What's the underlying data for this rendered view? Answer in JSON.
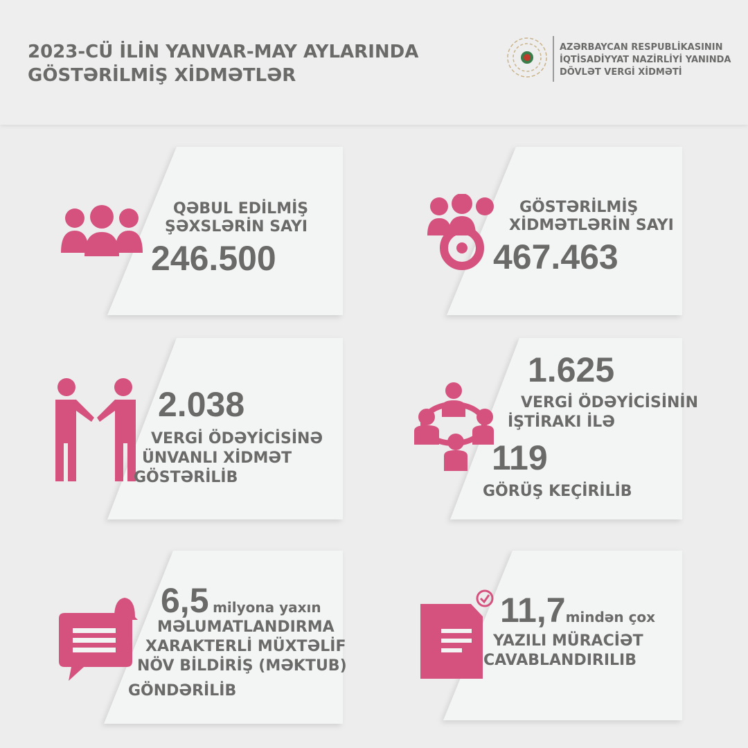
{
  "header": {
    "title_line1": "2023-CÜ İLİN YANVAR-MAY AYLARINDA",
    "title_line2": "GÖSTƏRİLMİŞ XİDMƏTLƏR",
    "org_line1": "AZƏRBAYCAN RESPUBLİKASININ",
    "org_line2": "İQTİSADİYYAT NAZİRLİYİ YANINDA",
    "org_line3": "DÖVLƏT VERGİ XİDMƏTİ"
  },
  "colors": {
    "accent": "#d6527e",
    "text": "#6a6a68",
    "background": "#ededed",
    "panel": "#f3f4f4"
  },
  "cards": [
    {
      "icon": "people-group-icon",
      "label1": "QƏBUL EDİLMİŞ",
      "label2": "ŞƏXSLƏRİN SAYI",
      "value": "246.500"
    },
    {
      "icon": "people-gear-icon",
      "label1": "GÖSTƏRİLMİŞ",
      "label2": "XİDMƏTLƏRİN SAYI",
      "value": "467.463"
    },
    {
      "icon": "handshake-icon",
      "value": "2.038",
      "label1": "VERGİ ÖDƏYİCİSİNƏ",
      "label2": "ÜNVANLI XİDMƏT",
      "label3": "GÖSTƏRİLİB"
    },
    {
      "icon": "meeting-circle-icon",
      "value": "1.625",
      "label1": "VERGİ ÖDƏYİCİSİNİN",
      "label2": "İŞTİRAKI İLƏ",
      "value2": "119",
      "label3": "GÖRÜŞ KEÇİRİLİB"
    },
    {
      "icon": "notification-message-icon",
      "value": "6,5",
      "suffix": "milyona yaxın",
      "label1": "MƏLUMATLANDIRMA",
      "label2": "XARAKTERLİ MÜXTƏLİF",
      "label3": "NÖV BİLDİRİŞ (MƏKTUB)",
      "label4": "GÖNDƏRİLİB"
    },
    {
      "icon": "document-check-icon",
      "value": "11,7",
      "suffix": "mindən çox",
      "label1": "YAZILI MÜRACİƏT",
      "label2": "CAVABLANDIRILIB"
    }
  ]
}
